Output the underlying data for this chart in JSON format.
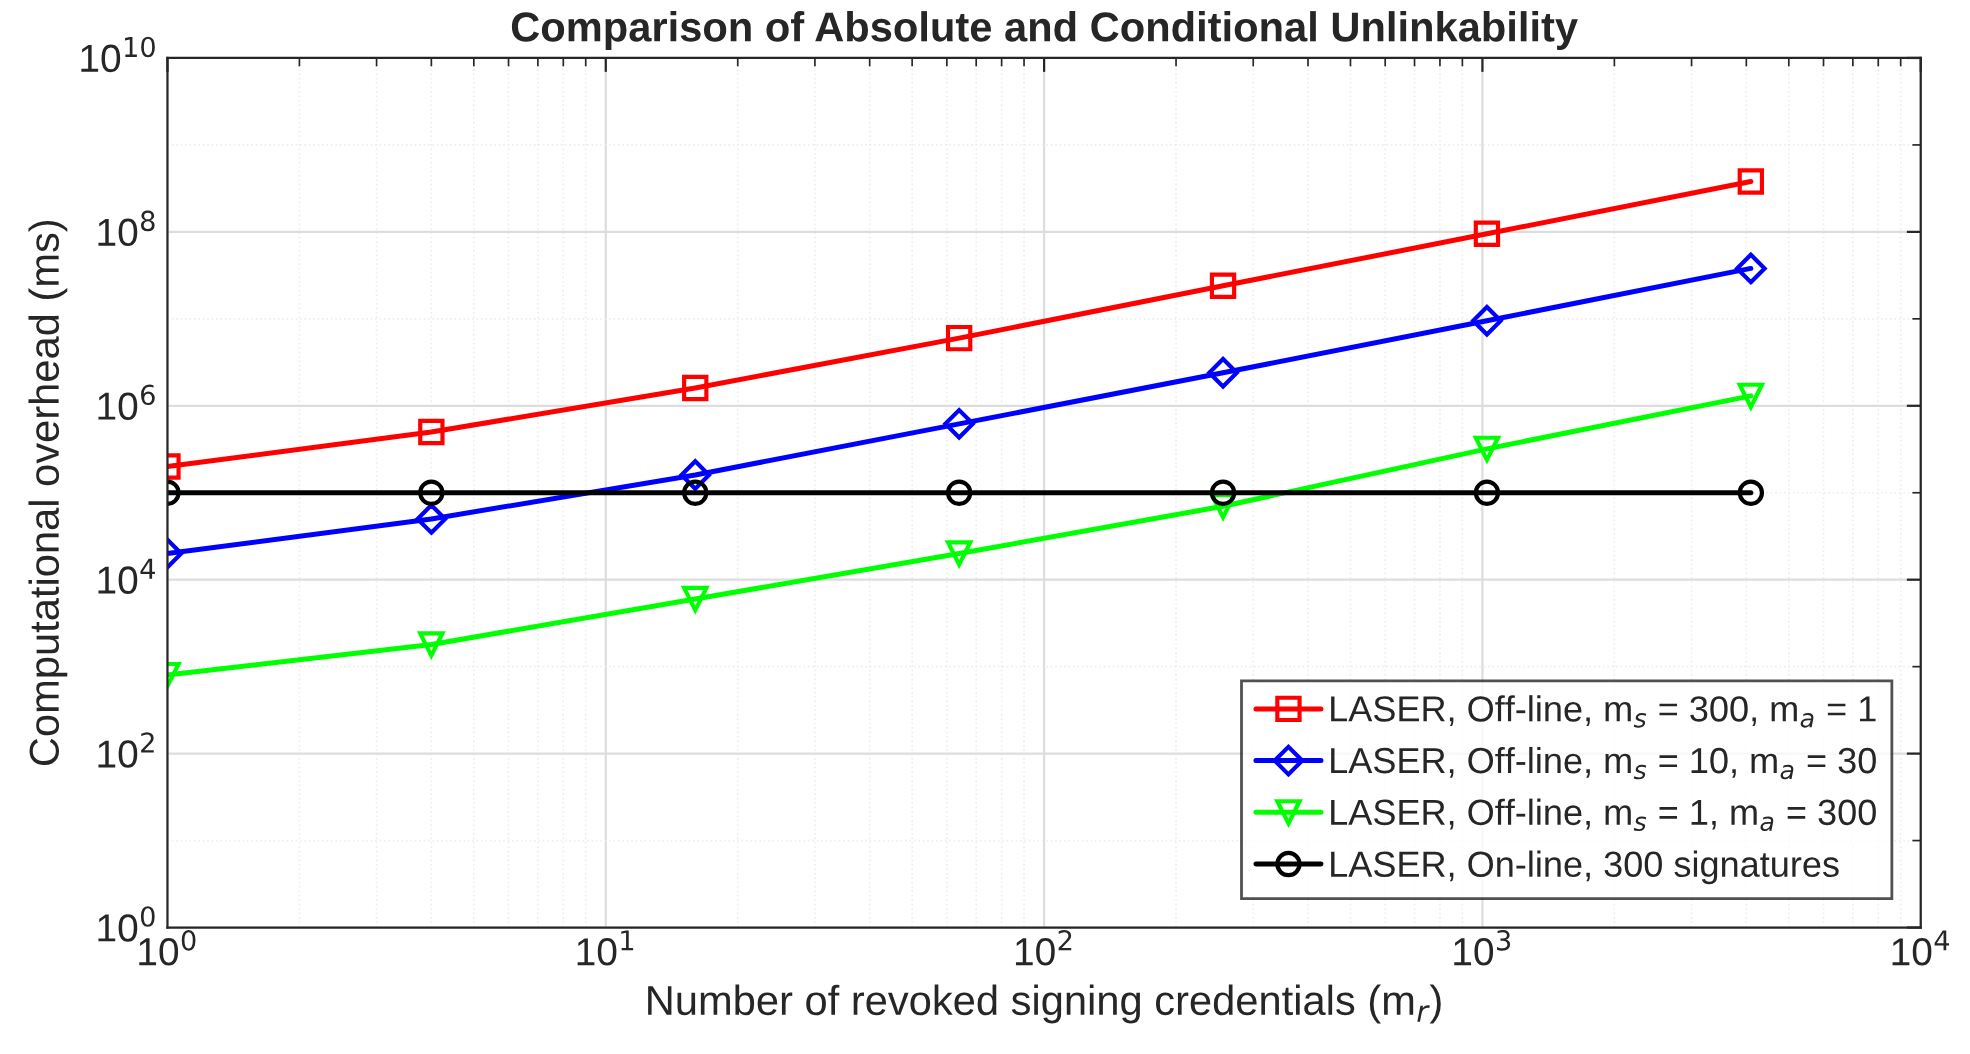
{
  "chart_data": {
    "type": "line",
    "title": "Comparison of Absolute and Conditional Unlinkability",
    "xlabel": "Number of revoked signing credentials (m$_{r}$)",
    "ylabel": "Computational overhead (ms)",
    "log": "xy",
    "grid": true,
    "legend": "bottom right",
    "line_style": "solid",
    "xlim": [
      1,
      10000
    ],
    "ylim": [
      1,
      10000000000
    ],
    "xticks": [
      {
        "value": 1,
        "label": "10$^{0}$"
      },
      {
        "value": 10,
        "label": "10$^{1}$"
      },
      {
        "value": 100,
        "label": "10$^{2}$"
      },
      {
        "value": 1000,
        "label": "10$^{3}$"
      },
      {
        "value": 10000,
        "label": "10$^{4}$"
      }
    ],
    "yticks": [
      {
        "value": 1,
        "label": "10$^{0}$"
      },
      {
        "value": 100,
        "label": "10$^{2}$"
      },
      {
        "value": 10000,
        "label": "10$^{4}$"
      },
      {
        "value": 1000000,
        "label": "10$^{6}$"
      },
      {
        "value": 100000000,
        "label": "10$^{8}$"
      },
      {
        "value": 10000000000,
        "label": "10$^{10}$"
      }
    ],
    "x": [
      1,
      4,
      16,
      64,
      256,
      1024,
      4096
    ],
    "series": [
      {
        "name": "LASER, Off-line, m$_{s}$ = 300, m$_{a}$ = 1",
        "color": "#ff0000",
        "marker": "square",
        "values": [
          200000,
          500000,
          1600000,
          6000000,
          24000000,
          95000000,
          380000000
        ]
      },
      {
        "name": "LASER, Off-line, m$_{s}$ = 10, m$_{a}$ = 30",
        "color": "#0000ff",
        "marker": "diamond",
        "values": [
          20000,
          50000,
          160000,
          620000,
          2400000,
          9500000,
          38000000
        ]
      },
      {
        "name": "LASER, Off-line, m$_{s}$ = 1, m$_{a}$ = 300",
        "color": "#00ff00",
        "marker": "triangle",
        "values": [
          800,
          1800,
          6000,
          20000,
          70000,
          320000,
          1300000
        ]
      },
      {
        "name": "LASER, On-line, 300 signatures",
        "color": "#000000",
        "marker": "circle",
        "values": [
          100000,
          100000,
          100000,
          100000,
          100000,
          100000,
          100000
        ]
      }
    ]
  }
}
